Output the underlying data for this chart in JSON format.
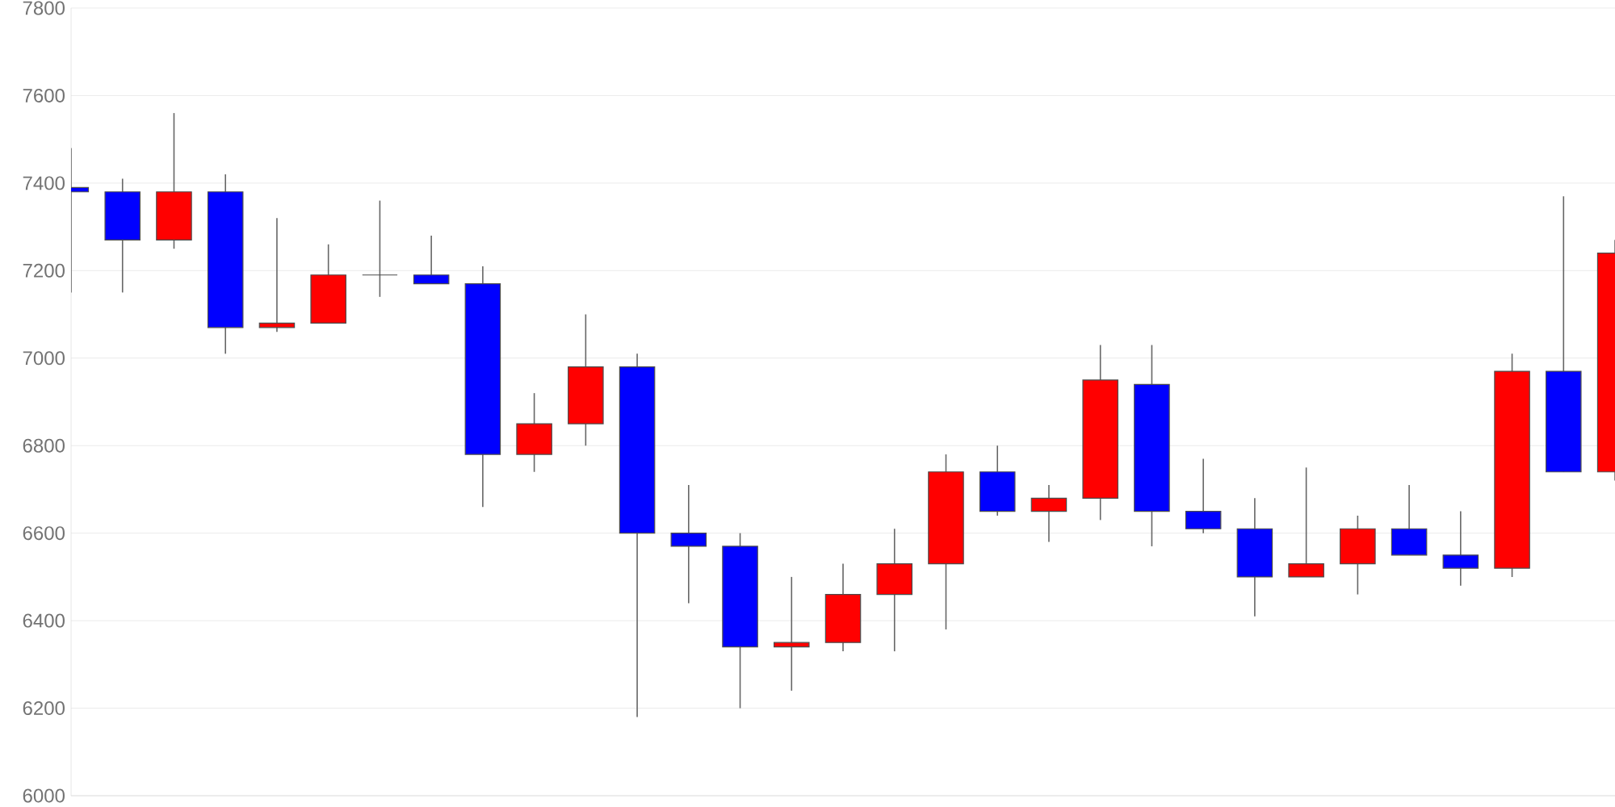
{
  "chart_data": {
    "type": "candlestick",
    "categories": [
      null,
      null,
      null,
      null,
      null,
      null,
      null,
      null,
      null,
      null,
      null,
      null,
      null,
      null,
      null,
      null,
      null,
      null,
      null,
      null,
      null,
      null,
      null,
      null,
      null,
      null,
      null,
      null,
      null,
      null,
      null
    ],
    "ohlc": [
      [
        7390,
        7480,
        7150,
        7380
      ],
      [
        7380,
        7410,
        7150,
        7270
      ],
      [
        7270,
        7560,
        7250,
        7380
      ],
      [
        7380,
        7420,
        7010,
        7070
      ],
      [
        7070,
        7320,
        7060,
        7080
      ],
      [
        7080,
        7260,
        7080,
        7190
      ],
      [
        7190,
        7360,
        7140,
        7190
      ],
      [
        7190,
        7280,
        7170,
        7170
      ],
      [
        7170,
        7210,
        6660,
        6780
      ],
      [
        6780,
        6920,
        6740,
        6850
      ],
      [
        6850,
        7100,
        6800,
        6980
      ],
      [
        6980,
        7010,
        6180,
        6600
      ],
      [
        6600,
        6710,
        6440,
        6570
      ],
      [
        6570,
        6600,
        6200,
        6340
      ],
      [
        6340,
        6500,
        6240,
        6350
      ],
      [
        6350,
        6530,
        6330,
        6460
      ],
      [
        6460,
        6610,
        6330,
        6530
      ],
      [
        6530,
        6780,
        6380,
        6740
      ],
      [
        6740,
        6800,
        6640,
        6650
      ],
      [
        6650,
        6710,
        6580,
        6680
      ],
      [
        6680,
        7030,
        6630,
        6950
      ],
      [
        6940,
        7030,
        6570,
        6650
      ],
      [
        6650,
        6770,
        6600,
        6610
      ],
      [
        6610,
        6680,
        6410,
        6500
      ],
      [
        6500,
        6750,
        6500,
        6530
      ],
      [
        6530,
        6640,
        6460,
        6610
      ],
      [
        6610,
        6710,
        6550,
        6550
      ],
      [
        6550,
        6650,
        6480,
        6520
      ],
      [
        6520,
        7010,
        6500,
        6970
      ],
      [
        6970,
        7370,
        6740,
        6740
      ],
      [
        6740,
        7270,
        6720,
        7240
      ]
    ],
    "colors": [
      "#0000ff",
      "#0000ff",
      "#ff0000",
      "#0000ff",
      "#ff0000",
      "#ff0000",
      "#4c4c4c",
      "#0000ff",
      "#0000ff",
      "#ff0000",
      "#ff0000",
      "#0000ff",
      "#0000ff",
      "#0000ff",
      "#ff0000",
      "#ff0000",
      "#ff0000",
      "#ff0000",
      "#0000ff",
      "#ff0000",
      "#ff0000",
      "#0000ff",
      "#0000ff",
      "#0000ff",
      "#ff0000",
      "#ff0000",
      "#0000ff",
      "#0000ff",
      "#ff0000",
      "#0000ff",
      "#ff0000"
    ],
    "ylim": [
      6000,
      7800
    ],
    "yticks": [
      6000,
      6200,
      6400,
      6600,
      6800,
      7000,
      7200,
      7400,
      7600,
      7800
    ],
    "grid": "y",
    "tick_labels": "y"
  }
}
